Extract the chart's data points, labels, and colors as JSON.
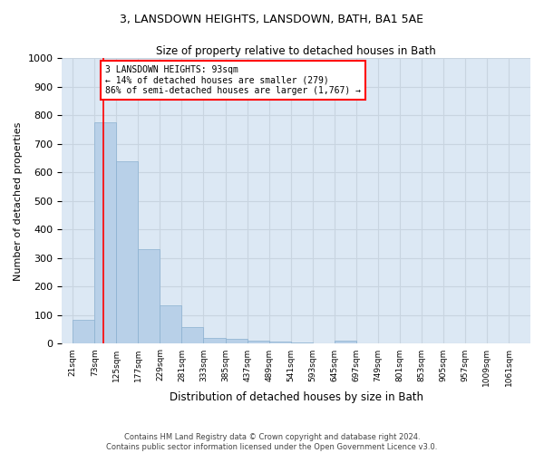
{
  "title1": "3, LANSDOWN HEIGHTS, LANSDOWN, BATH, BA1 5AE",
  "title2": "Size of property relative to detached houses in Bath",
  "xlabel": "Distribution of detached houses by size in Bath",
  "ylabel": "Number of detached properties",
  "footer1": "Contains HM Land Registry data © Crown copyright and database right 2024.",
  "footer2": "Contains public sector information licensed under the Open Government Licence v3.0.",
  "bin_labels": [
    "21sqm",
    "73sqm",
    "125sqm",
    "177sqm",
    "229sqm",
    "281sqm",
    "333sqm",
    "385sqm",
    "437sqm",
    "489sqm",
    "541sqm",
    "593sqm",
    "645sqm",
    "697sqm",
    "749sqm",
    "801sqm",
    "853sqm",
    "905sqm",
    "957sqm",
    "1009sqm",
    "1061sqm"
  ],
  "bar_heights": [
    85,
    775,
    640,
    330,
    135,
    60,
    20,
    18,
    12,
    8,
    6,
    0,
    10,
    0,
    0,
    0,
    0,
    0,
    0,
    0,
    0
  ],
  "bar_color": "#b8d0e8",
  "bar_edge_color": "#8ab0d0",
  "grid_color": "#c8d4e0",
  "background_color": "#dce8f4",
  "annotation_text": "3 LANSDOWN HEIGHTS: 93sqm\n← 14% of detached houses are smaller (279)\n86% of semi-detached houses are larger (1,767) →",
  "annotation_box_color": "white",
  "annotation_box_edge_color": "red",
  "vline_x": 93,
  "vline_color": "red",
  "ylim": [
    0,
    1000
  ],
  "xlim_min": 21,
  "xlim_max": 1113,
  "bin_width": 52,
  "yticks": [
    0,
    100,
    200,
    300,
    400,
    500,
    600,
    700,
    800,
    900,
    1000
  ]
}
